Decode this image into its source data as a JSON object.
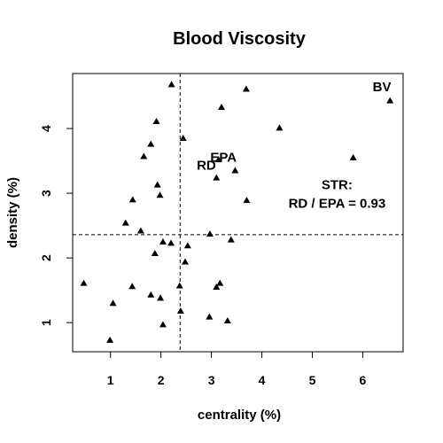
{
  "chart_data": {
    "type": "scatter",
    "title": "Blood Viscosity",
    "xlabel": "centrality (%)",
    "ylabel": "density (%)",
    "xlim": [
      0.25,
      6.8
    ],
    "ylim": [
      0.55,
      4.85
    ],
    "xticks": [
      "1",
      "2",
      "3",
      "4",
      "5",
      "6"
    ],
    "yticks": [
      "1",
      "2",
      "3",
      "4"
    ],
    "marker": "triangle",
    "color": "#000000",
    "vline": 2.38,
    "hline": 2.36,
    "points": [
      {
        "x": 0.47,
        "y": 1.61
      },
      {
        "x": 0.99,
        "y": 0.73
      },
      {
        "x": 1.05,
        "y": 1.3
      },
      {
        "x": 1.3,
        "y": 2.54
      },
      {
        "x": 1.43,
        "y": 1.56
      },
      {
        "x": 1.44,
        "y": 2.9
      },
      {
        "x": 1.6,
        "y": 2.42
      },
      {
        "x": 1.66,
        "y": 3.57
      },
      {
        "x": 1.8,
        "y": 1.43
      },
      {
        "x": 1.8,
        "y": 3.76
      },
      {
        "x": 1.88,
        "y": 2.07
      },
      {
        "x": 1.91,
        "y": 4.11
      },
      {
        "x": 1.93,
        "y": 3.13
      },
      {
        "x": 1.98,
        "y": 2.97
      },
      {
        "x": 1.99,
        "y": 1.38
      },
      {
        "x": 2.04,
        "y": 0.97
      },
      {
        "x": 2.04,
        "y": 2.25
      },
      {
        "x": 2.2,
        "y": 2.23
      },
      {
        "x": 2.21,
        "y": 4.68
      },
      {
        "x": 2.37,
        "y": 1.57
      },
      {
        "x": 2.39,
        "y": 1.18
      },
      {
        "x": 2.44,
        "y": 3.85
      },
      {
        "x": 2.48,
        "y": 1.94
      },
      {
        "x": 2.53,
        "y": 2.19
      },
      {
        "x": 2.96,
        "y": 1.09
      },
      {
        "x": 2.97,
        "y": 2.37
      },
      {
        "x": 3.1,
        "y": 1.55
      },
      {
        "x": 3.1,
        "y": 3.24
      },
      {
        "x": 3.14,
        "y": 3.52
      },
      {
        "x": 3.17,
        "y": 1.61
      },
      {
        "x": 3.2,
        "y": 4.33
      },
      {
        "x": 3.32,
        "y": 1.03
      },
      {
        "x": 3.39,
        "y": 2.28
      },
      {
        "x": 3.47,
        "y": 3.35
      },
      {
        "x": 3.69,
        "y": 4.61
      },
      {
        "x": 3.7,
        "y": 2.89
      },
      {
        "x": 4.35,
        "y": 4.01
      },
      {
        "x": 5.81,
        "y": 3.55
      },
      {
        "x": 6.54,
        "y": 4.43
      }
    ],
    "annotations": [
      {
        "text": "BV",
        "x": 6.38,
        "y": 4.63
      },
      {
        "text": "EPA",
        "x": 3.24,
        "y": 3.54
      },
      {
        "text": "RD",
        "x": 2.9,
        "y": 3.42
      },
      {
        "text": "STR:",
        "x": 5.49,
        "y": 3.12
      },
      {
        "text": "RD / EPA = 0.93",
        "x": 5.49,
        "y": 2.83
      }
    ]
  }
}
